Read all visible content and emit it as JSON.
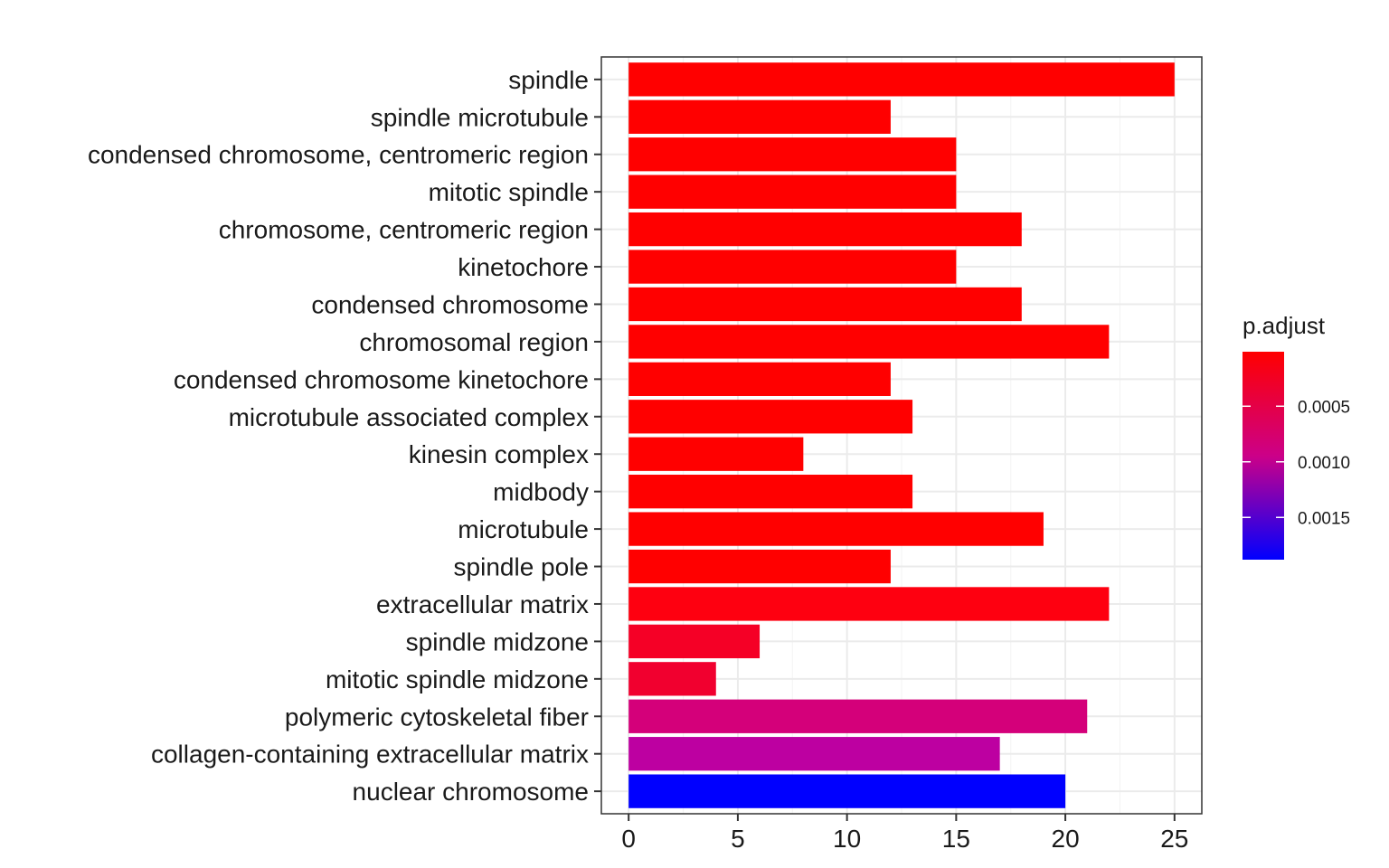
{
  "chart_data": {
    "type": "bar",
    "orientation": "horizontal",
    "categories": [
      "spindle",
      "spindle microtubule",
      "condensed chromosome, centromeric region",
      "mitotic spindle",
      "chromosome, centromeric region",
      "kinetochore",
      "condensed chromosome",
      "chromosomal region",
      "condensed chromosome kinetochore",
      "microtubule associated complex",
      "kinesin complex",
      "midbody",
      "microtubule",
      "spindle pole",
      "extracellular matrix",
      "spindle midzone",
      "mitotic spindle midzone",
      "polymeric cytoskeletal fiber",
      "collagen-containing extracellular matrix",
      "nuclear chromosome"
    ],
    "values": [
      25,
      12,
      15,
      15,
      18,
      15,
      18,
      22,
      12,
      13,
      8,
      13,
      19,
      12,
      22,
      6,
      4,
      21,
      17,
      20
    ],
    "p_adjust": [
      1e-05,
      2e-05,
      3e-05,
      4e-05,
      5e-05,
      6e-05,
      7e-05,
      8e-05,
      9e-05,
      0.0001,
      0.00012,
      0.00013,
      0.00015,
      0.00016,
      0.00025,
      0.00035,
      0.0004,
      0.00102,
      0.00124,
      0.00188
    ],
    "bar_colors": [
      "#ff0000",
      "#ff0000",
      "#ff0000",
      "#ff0000",
      "#ff0000",
      "#ff0000",
      "#ff0000",
      "#ff0000",
      "#ff0000",
      "#ff0000",
      "#ff0000",
      "#ff0000",
      "#ff0000",
      "#ff0000",
      "#fe0010",
      "#f50026",
      "#f1002f",
      "#d4007a",
      "#bd00a1",
      "#0000ff"
    ],
    "xlim": [
      -1.25,
      26.25
    ],
    "xticks": [
      0,
      5,
      10,
      15,
      20,
      25
    ],
    "xlabel": "",
    "ylabel": "",
    "grid": true,
    "legend": {
      "title": "p.adjust",
      "position": "right",
      "type": "colorbar",
      "ticks": [
        {
          "label": "0.0005",
          "value": 0.0005
        },
        {
          "label": "0.0010",
          "value": 0.001
        },
        {
          "label": "0.0015",
          "value": 0.0015
        }
      ],
      "range": [
        1e-05,
        0.00188
      ],
      "low_color": "#ff0000",
      "high_color": "#0000ff"
    }
  }
}
